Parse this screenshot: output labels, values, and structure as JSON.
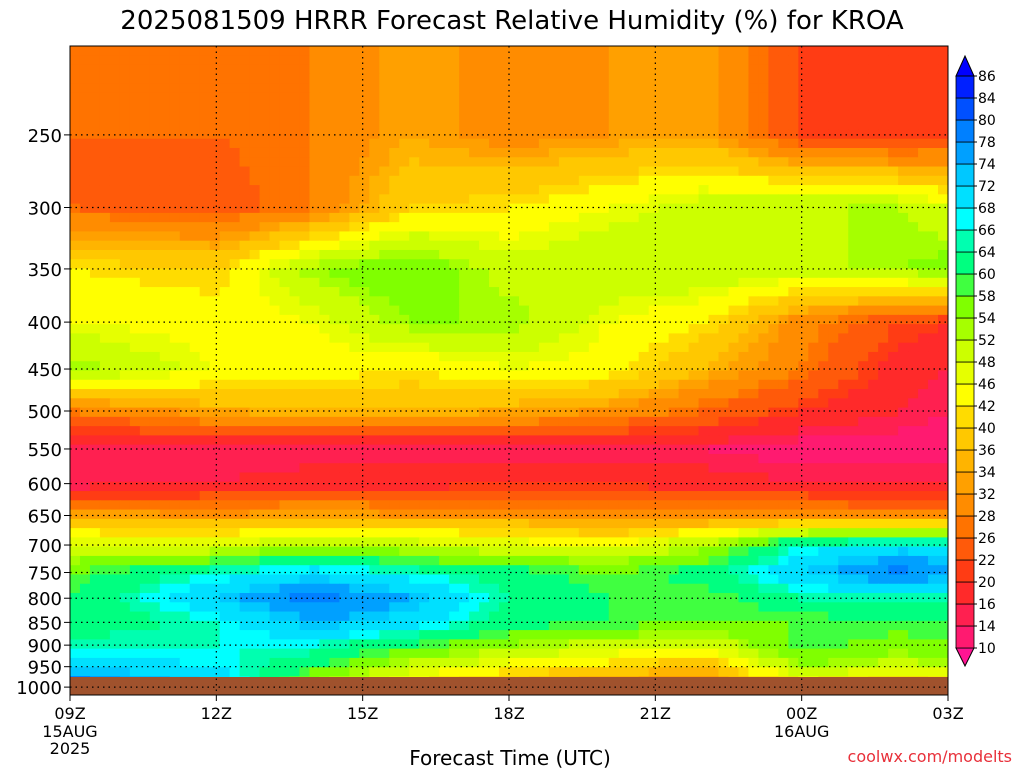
{
  "chart_data": {
    "type": "heatmap",
    "title": "2025081509 HRRR Forecast Relative Humidity (%) for KROA",
    "xlabel": "Forecast Time (UTC)",
    "ylabel": "",
    "credit": "coolwx.com/modelts",
    "x_ticks": [
      {
        "hour": 0,
        "label": "09Z",
        "date": "15AUG",
        "year": "2025"
      },
      {
        "hour": 3,
        "label": "12Z"
      },
      {
        "hour": 6,
        "label": "15Z"
      },
      {
        "hour": 9,
        "label": "18Z"
      },
      {
        "hour": 12,
        "label": "21Z"
      },
      {
        "hour": 15,
        "label": "00Z",
        "date": "16AUG"
      },
      {
        "hour": 18,
        "label": "03Z"
      }
    ],
    "xlim": [
      0,
      18
    ],
    "y_levels": [
      1000,
      950,
      900,
      850,
      800,
      750,
      700,
      650,
      600,
      550,
      500,
      450,
      400,
      350,
      300,
      250
    ],
    "ylim": [
      1020,
      200
    ],
    "y_scale": "log-pressure (inverted)",
    "ground_level": 975,
    "ground_color": "#a0522d",
    "grid": true,
    "colorbar": {
      "levels": [
        10,
        14,
        16,
        20,
        22,
        26,
        28,
        32,
        34,
        36,
        40,
        42,
        46,
        48,
        52,
        54,
        58,
        60,
        64,
        66,
        68,
        72,
        74,
        78,
        80,
        84,
        86
      ],
      "colors": [
        "#ff1493",
        "#ff1a70",
        "#ff2050",
        "#ff2a2a",
        "#ff3c14",
        "#ff5a0a",
        "#ff7300",
        "#ff8c00",
        "#ffa000",
        "#ffb400",
        "#ffc800",
        "#ffdc00",
        "#ffff00",
        "#e6ff00",
        "#ccff00",
        "#a6ff00",
        "#80ff00",
        "#40ff40",
        "#00ff80",
        "#00ffb0",
        "#00ffff",
        "#00e0ff",
        "#00c8ff",
        "#00a0ff",
        "#0080ff",
        "#0050ff",
        "#0020ff",
        "#0000ff"
      ],
      "extend": "both"
    },
    "profile_columns": [
      {
        "hour": 0,
        "rh": [
          86,
          70,
          66,
          60,
          60,
          58,
          48,
          34,
          14,
          14,
          28,
          54,
          46,
          42,
          26,
          26
        ]
      },
      {
        "hour": 3,
        "rh": [
          72,
          68,
          66,
          66,
          72,
          66,
          48,
          32,
          16,
          14,
          34,
          46,
          44,
          40,
          24,
          26
        ]
      },
      {
        "hour": 5,
        "rh": [
          52,
          60,
          66,
          74,
          80,
          70,
          52,
          34,
          18,
          14,
          36,
          44,
          46,
          54,
          28,
          28
        ]
      },
      {
        "hour": 7,
        "rh": [
          40,
          50,
          60,
          70,
          74,
          66,
          50,
          32,
          18,
          14,
          36,
          42,
          54,
          58,
          40,
          34
        ]
      },
      {
        "hour": 9,
        "rh": [
          34,
          44,
          54,
          62,
          64,
          62,
          48,
          32,
          20,
          14,
          34,
          46,
          54,
          50,
          42,
          30
        ]
      },
      {
        "hour": 11,
        "rh": [
          30,
          40,
          50,
          60,
          60,
          58,
          46,
          30,
          20,
          14,
          32,
          44,
          46,
          52,
          46,
          32
        ]
      },
      {
        "hour": 13,
        "rh": [
          28,
          36,
          48,
          58,
          58,
          62,
          52,
          30,
          18,
          14,
          26,
          36,
          42,
          52,
          50,
          34
        ]
      },
      {
        "hour": 15,
        "rh": [
          38,
          54,
          60,
          58,
          64,
          72,
          66,
          32,
          16,
          12,
          20,
          28,
          30,
          50,
          52,
          22
        ]
      },
      {
        "hour": 17,
        "rh": [
          34,
          50,
          56,
          60,
          64,
          80,
          70,
          30,
          16,
          12,
          16,
          18,
          22,
          54,
          52,
          20
        ]
      },
      {
        "hour": 18,
        "rh": [
          36,
          52,
          58,
          60,
          64,
          76,
          68,
          30,
          16,
          12,
          14,
          16,
          20,
          56,
          48,
          22
        ]
      }
    ]
  }
}
